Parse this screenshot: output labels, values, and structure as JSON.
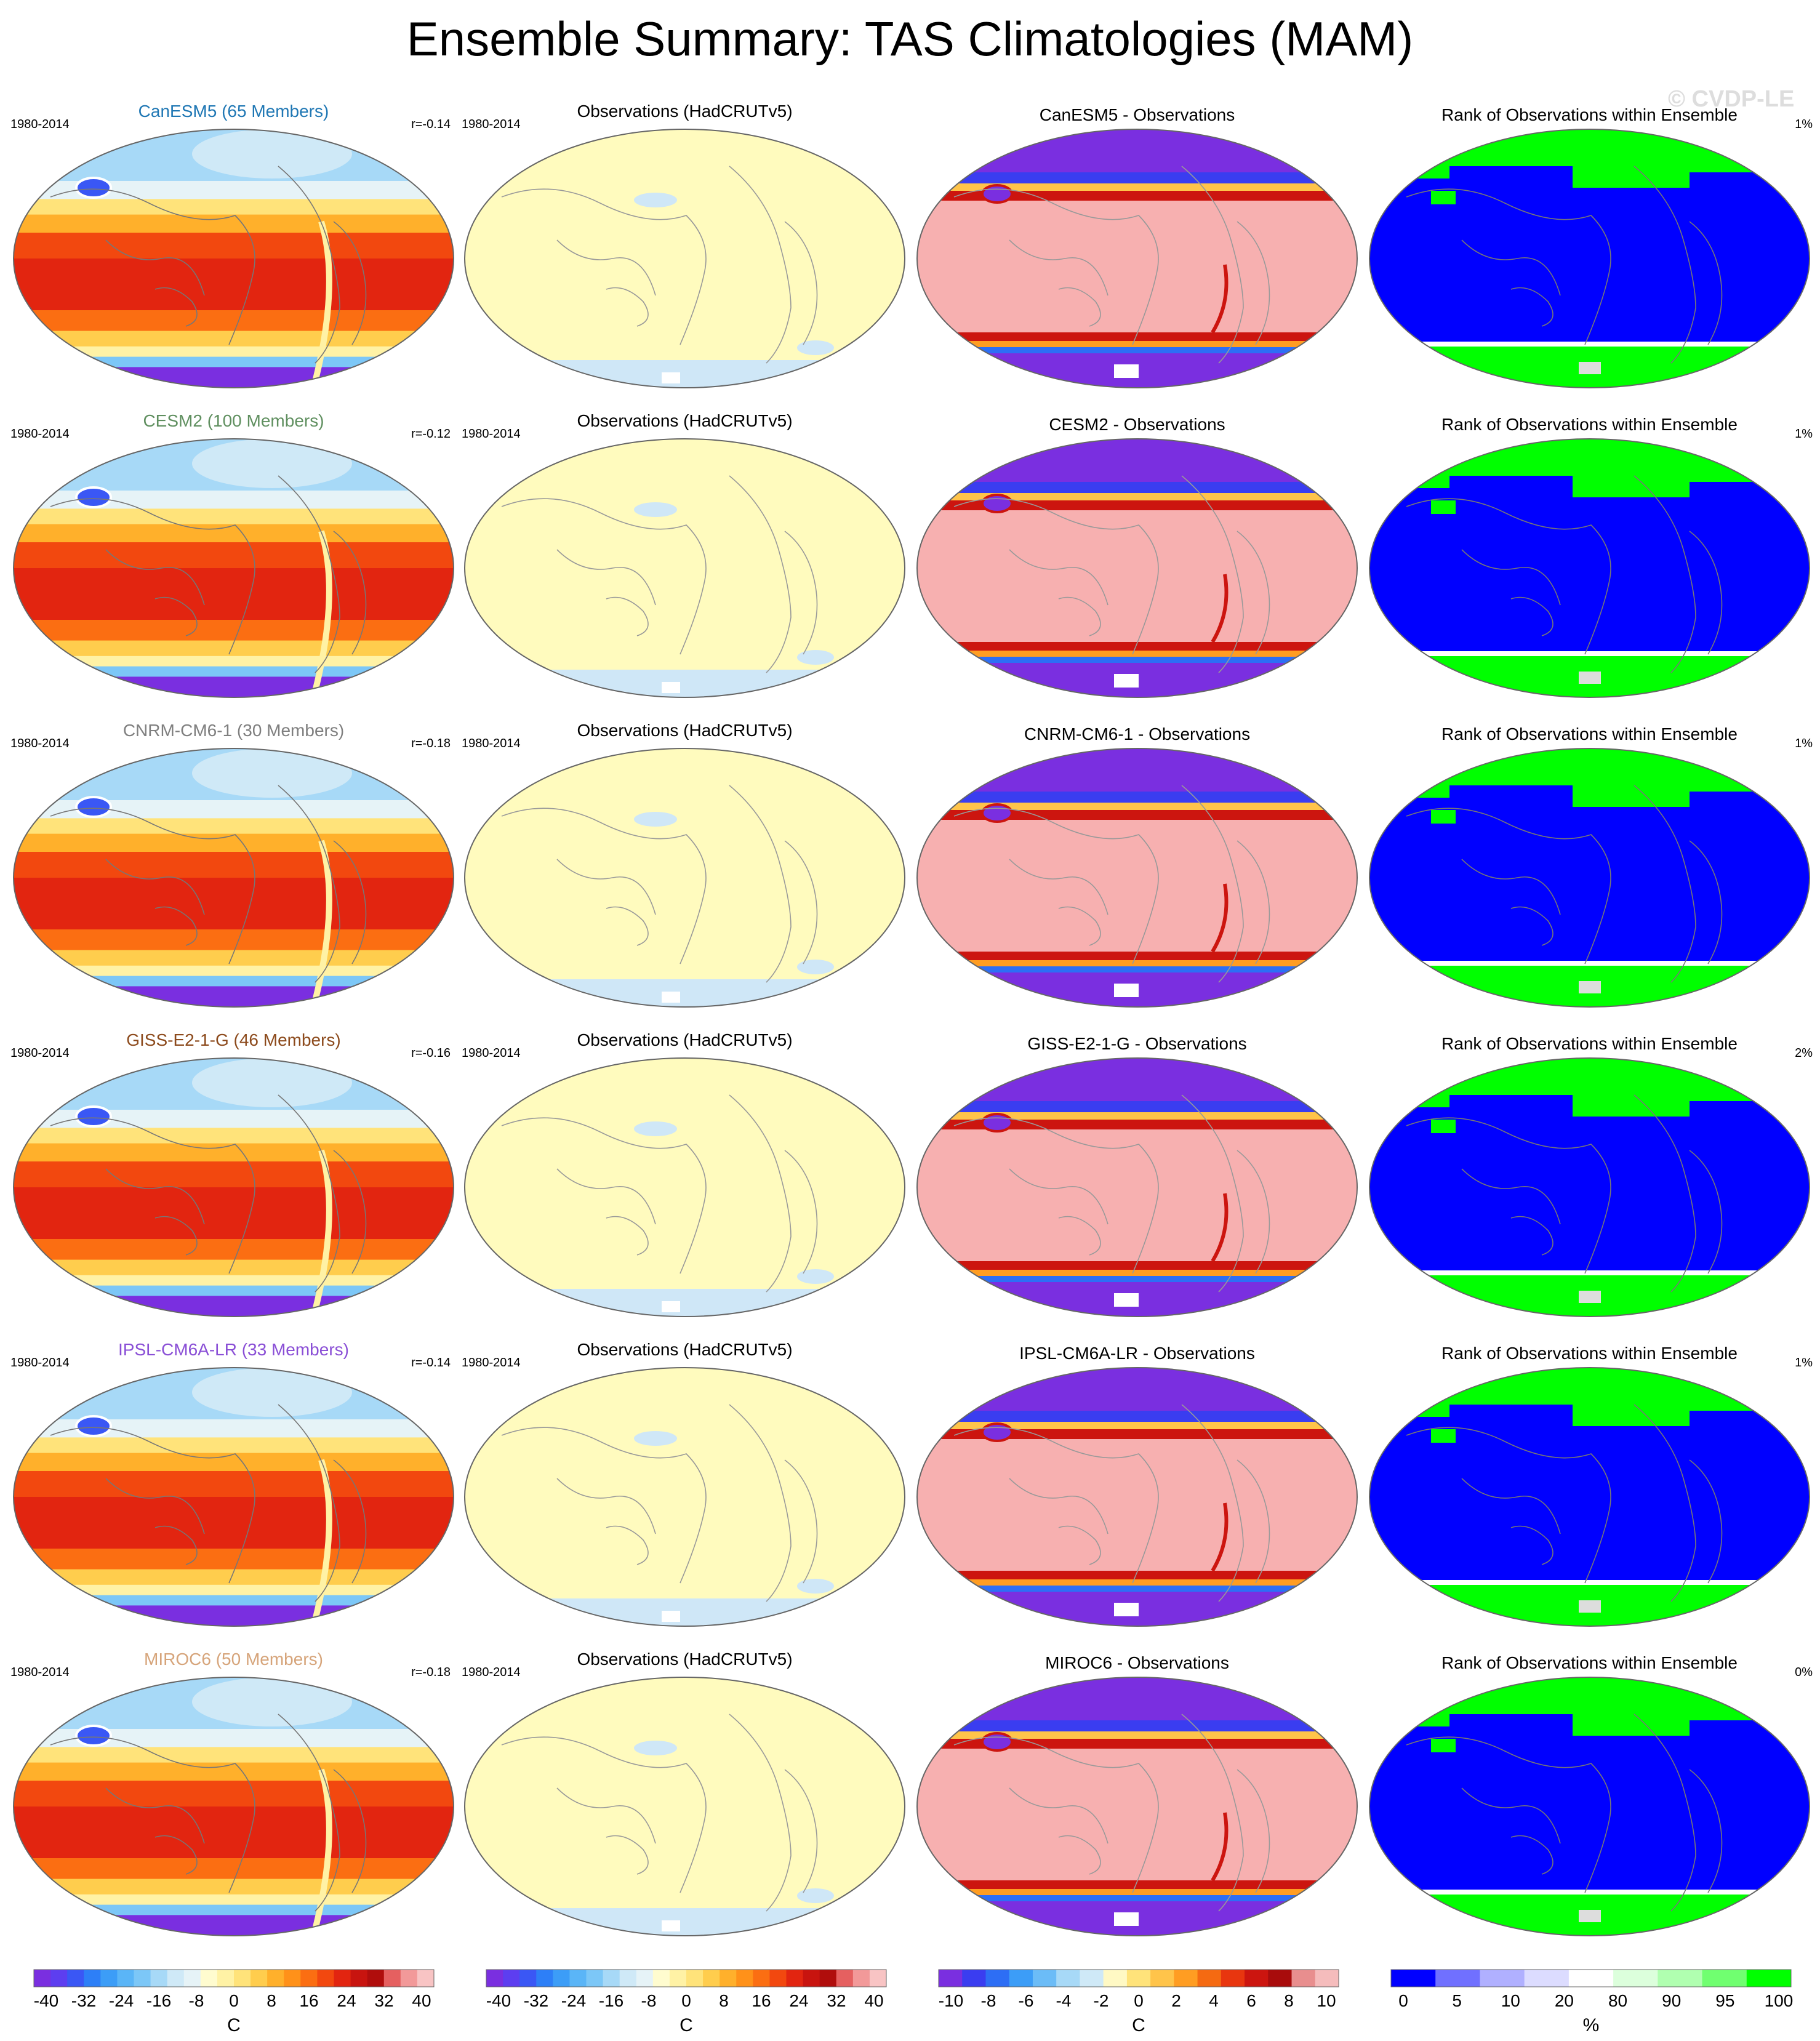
{
  "title": "Ensemble Summary: TAS Climatologies (MAM)",
  "watermark": "© CVDP-LE",
  "chart_data": {
    "type": "heatmap",
    "projection": "Robinson global maps (Pacific-centered)",
    "rows": [
      {
        "model": {
          "label": "CanESM5 (65 Members)",
          "color": "#1f77b4",
          "period": "1980-2014",
          "pattern_corr": "r=-0.14"
        },
        "obs": {
          "label": "Observations (HadCRUTv5)",
          "period": "1980-2014"
        },
        "diff": {
          "label": "CanESM5 - Observations"
        },
        "rank": {
          "label": "Rank of Observations within Ensemble",
          "value": "1%"
        }
      },
      {
        "model": {
          "label": "CESM2 (100 Members)",
          "color": "#5f8f5f",
          "period": "1980-2014",
          "pattern_corr": "r=-0.12"
        },
        "obs": {
          "label": "Observations (HadCRUTv5)",
          "period": "1980-2014"
        },
        "diff": {
          "label": "CESM2 - Observations"
        },
        "rank": {
          "label": "Rank of Observations within Ensemble",
          "value": "1%"
        }
      },
      {
        "model": {
          "label": "CNRM-CM6-1 (30 Members)",
          "color": "#7f7f7f",
          "period": "1980-2014",
          "pattern_corr": "r=-0.18"
        },
        "obs": {
          "label": "Observations (HadCRUTv5)",
          "period": "1980-2014"
        },
        "diff": {
          "label": "CNRM-CM6-1 - Observations"
        },
        "rank": {
          "label": "Rank of Observations within Ensemble",
          "value": "1%"
        }
      },
      {
        "model": {
          "label": "GISS-E2-1-G (46 Members)",
          "color": "#8c4a1c",
          "period": "1980-2014",
          "pattern_corr": "r=-0.16"
        },
        "obs": {
          "label": "Observations (HadCRUTv5)",
          "period": "1980-2014"
        },
        "diff": {
          "label": "GISS-E2-1-G - Observations"
        },
        "rank": {
          "label": "Rank of Observations within Ensemble",
          "value": "2%"
        }
      },
      {
        "model": {
          "label": "IPSL-CM6A-LR (33 Members)",
          "color": "#8a4fd6",
          "period": "1980-2014",
          "pattern_corr": "r=-0.14"
        },
        "obs": {
          "label": "Observations (HadCRUTv5)",
          "period": "1980-2014"
        },
        "diff": {
          "label": "IPSL-CM6A-LR - Observations"
        },
        "rank": {
          "label": "Rank of Observations within Ensemble",
          "value": "1%"
        }
      },
      {
        "model": {
          "label": "MIROC6 (50 Members)",
          "color": "#d6a47a",
          "period": "1980-2014",
          "pattern_corr": "r=-0.18"
        },
        "obs": {
          "label": "Observations (HadCRUTv5)",
          "period": "1980-2014"
        },
        "diff": {
          "label": "MIROC6 - Observations"
        },
        "rank": {
          "label": "Rank of Observations within Ensemble",
          "value": "0%"
        }
      }
    ],
    "colorbars": [
      {
        "name": "climatology-model",
        "unit": "C",
        "tick_labels": [
          "-40",
          "-32",
          "-24",
          "-16",
          "-8",
          "0",
          "8",
          "16",
          "24",
          "32",
          "40"
        ],
        "colors": [
          "#7a2fe0",
          "#5d3ef0",
          "#3a57f5",
          "#2d7ff7",
          "#3c9df7",
          "#5ab5f7",
          "#7cc7f7",
          "#a7d9f7",
          "#cfe9f7",
          "#e6f3f7",
          "#fffccf",
          "#fff2a5",
          "#ffe37a",
          "#ffcd4d",
          "#ffb02b",
          "#ff9119",
          "#fb6e12",
          "#f2480f",
          "#e22510",
          "#c8140f",
          "#b00d0c",
          "#e56060",
          "#f29999",
          "#f8c4c4"
        ]
      },
      {
        "name": "climatology-obs",
        "unit": "C",
        "tick_labels": [
          "-40",
          "-32",
          "-24",
          "-16",
          "-8",
          "0",
          "8",
          "16",
          "24",
          "32",
          "40"
        ],
        "colors": [
          "#7a2fe0",
          "#5d3ef0",
          "#3a57f5",
          "#2d7ff7",
          "#3c9df7",
          "#5ab5f7",
          "#7cc7f7",
          "#a7d9f7",
          "#cfe9f7",
          "#e6f3f7",
          "#fffccf",
          "#fff2a5",
          "#ffe37a",
          "#ffcd4d",
          "#ffb02b",
          "#ff9119",
          "#fb6e12",
          "#f2480f",
          "#e22510",
          "#c8140f",
          "#b00d0c",
          "#e56060",
          "#f29999",
          "#f8c4c4"
        ]
      },
      {
        "name": "difference",
        "unit": "C",
        "tick_labels": [
          "-10",
          "-8",
          "-6",
          "-4",
          "-2",
          "0",
          "2",
          "4",
          "6",
          "8",
          "10"
        ],
        "colors": [
          "#7a2fe0",
          "#3a3df0",
          "#2d6ef5",
          "#3c9df7",
          "#6bbcf7",
          "#a7d9f7",
          "#cfe9f7",
          "#fff9c4",
          "#ffe37a",
          "#ffc44a",
          "#ff9d22",
          "#f56a12",
          "#e8360f",
          "#cc150f",
          "#a80c0c",
          "#e88e8e",
          "#f5bcbc"
        ]
      },
      {
        "name": "rank",
        "unit": "%",
        "tick_labels": [
          "0",
          "5",
          "10",
          "20",
          "80",
          "90",
          "95",
          "100"
        ],
        "colors": [
          "#0000ff",
          "#7070ff",
          "#b0b0ff",
          "#dcdcff",
          "#ffffff",
          "#dcffdc",
          "#b0ffb0",
          "#70ff70",
          "#00ff00"
        ]
      }
    ]
  }
}
